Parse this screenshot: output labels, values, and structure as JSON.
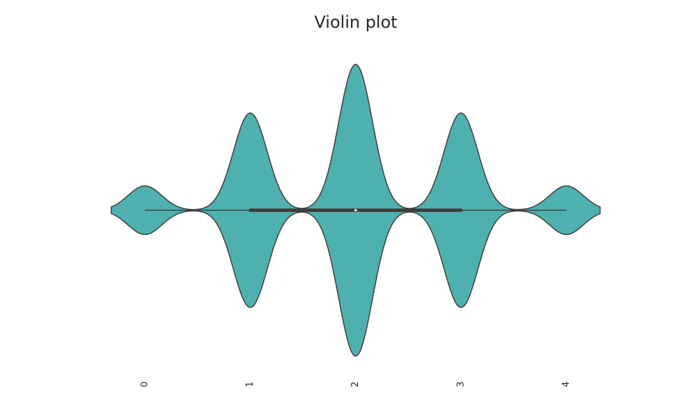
{
  "chart_data": {
    "type": "violin",
    "title": "Violin plot",
    "values": [
      0,
      1,
      1,
      1,
      1,
      2,
      2,
      2,
      2,
      2,
      2,
      3,
      3,
      3,
      3,
      4
    ],
    "box": {
      "whislo": 0,
      "q1": 1,
      "median": 2,
      "q3": 3,
      "whishi": 4
    },
    "color": "#4fb0b0",
    "xlim": [
      -0.32,
      4.33
    ],
    "xticks": [
      0,
      1,
      2,
      3,
      4
    ]
  }
}
